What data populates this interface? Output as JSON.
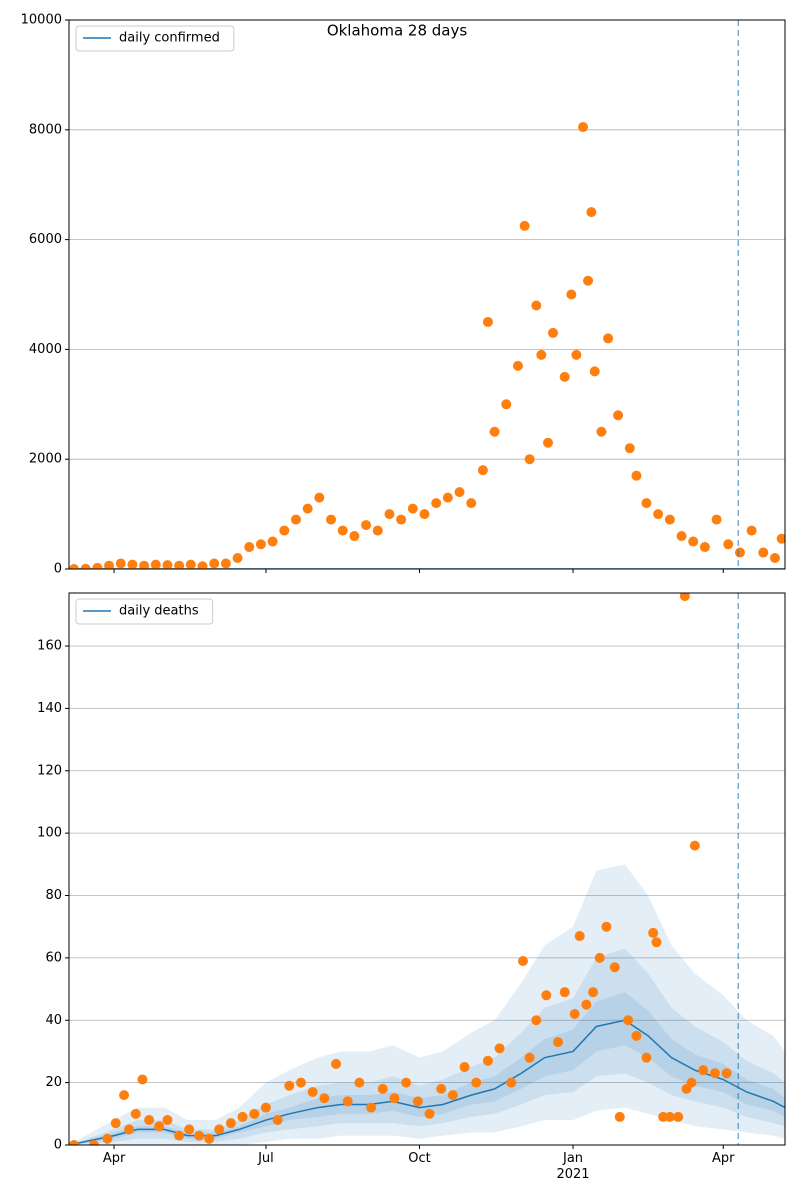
{
  "chart_data": [
    {
      "type": "line",
      "title": "Oklahoma 28 days",
      "ylim": [
        0,
        10000
      ],
      "yticks": [
        0,
        2000,
        4000,
        6000,
        8000,
        10000
      ],
      "grid": true,
      "legend": "upper left",
      "xlim": [
        "2020-03-05",
        "2021-05-08"
      ],
      "vline": "2021-04-10",
      "series": [
        {
          "name": "daily confirmed",
          "color": "#1f77b4",
          "x": [
            "2020-03-05",
            "2021-05-08"
          ],
          "values": [
            0,
            0
          ]
        }
      ],
      "scatter": {
        "color": "#ff7f0e",
        "x": [
          "2020-03-08",
          "2020-03-15",
          "2020-03-22",
          "2020-03-29",
          "2020-04-05",
          "2020-04-12",
          "2020-04-19",
          "2020-04-26",
          "2020-05-03",
          "2020-05-10",
          "2020-05-17",
          "2020-05-24",
          "2020-05-31",
          "2020-06-07",
          "2020-06-14",
          "2020-06-21",
          "2020-06-28",
          "2020-07-05",
          "2020-07-12",
          "2020-07-19",
          "2020-07-26",
          "2020-08-02",
          "2020-08-09",
          "2020-08-16",
          "2020-08-23",
          "2020-08-30",
          "2020-09-06",
          "2020-09-13",
          "2020-09-20",
          "2020-09-27",
          "2020-10-04",
          "2020-10-11",
          "2020-10-18",
          "2020-10-25",
          "2020-11-01",
          "2020-11-08",
          "2020-11-11",
          "2020-11-15",
          "2020-11-22",
          "2020-11-29",
          "2020-12-03",
          "2020-12-06",
          "2020-12-10",
          "2020-12-13",
          "2020-12-17",
          "2020-12-20",
          "2020-12-27",
          "2020-12-31",
          "2021-01-03",
          "2021-01-07",
          "2021-01-10",
          "2021-01-12",
          "2021-01-14",
          "2021-01-18",
          "2021-01-22",
          "2021-01-28",
          "2021-02-04",
          "2021-02-08",
          "2021-02-14",
          "2021-02-21",
          "2021-02-28",
          "2021-03-07",
          "2021-03-14",
          "2021-03-21",
          "2021-03-28",
          "2021-04-04",
          "2021-04-11",
          "2021-04-18",
          "2021-04-25",
          "2021-05-02",
          "2021-05-06"
        ],
        "values": [
          0,
          5,
          20,
          60,
          100,
          80,
          60,
          80,
          70,
          60,
          80,
          50,
          100,
          100,
          200,
          400,
          450,
          500,
          700,
          900,
          1100,
          1300,
          900,
          700,
          600,
          800,
          700,
          1000,
          900,
          1100,
          1000,
          1200,
          1300,
          1400,
          1200,
          1800,
          4500,
          2500,
          3000,
          3700,
          6250,
          2000,
          4800,
          3900,
          2300,
          4300,
          3500,
          5000,
          3900,
          8050,
          5250,
          6500,
          3600,
          2500,
          4200,
          2800,
          2200,
          1700,
          1200,
          1000,
          900,
          600,
          500,
          400,
          900,
          450,
          300,
          700,
          300,
          200,
          550
        ]
      }
    },
    {
      "type": "line",
      "ylim": [
        0,
        177
      ],
      "yticks": [
        0,
        20,
        40,
        60,
        80,
        100,
        120,
        140,
        160
      ],
      "grid": true,
      "legend": "upper left",
      "xlim": [
        "2020-03-05",
        "2021-05-08"
      ],
      "vline": "2021-04-10",
      "xticks": [
        {
          "value": "2020-04-01",
          "label": "Apr"
        },
        {
          "value": "2020-07-01",
          "label": "Jul"
        },
        {
          "value": "2020-10-01",
          "label": "Oct"
        },
        {
          "value": "2021-01-01",
          "label": "Jan\n2021"
        },
        {
          "value": "2021-04-01",
          "label": "Apr"
        }
      ],
      "series": [
        {
          "name": "daily deaths",
          "color": "#1f77b4",
          "x": [
            "2020-03-05",
            "2020-04-01",
            "2020-04-15",
            "2020-05-01",
            "2020-05-15",
            "2020-06-01",
            "2020-06-15",
            "2020-07-01",
            "2020-07-15",
            "2020-08-01",
            "2020-08-15",
            "2020-09-01",
            "2020-09-15",
            "2020-10-01",
            "2020-10-15",
            "2020-11-01",
            "2020-11-15",
            "2020-12-01",
            "2020-12-15",
            "2021-01-01",
            "2021-01-15",
            "2021-02-01",
            "2021-02-15",
            "2021-03-01",
            "2021-03-15",
            "2021-04-01",
            "2021-04-15",
            "2021-05-01",
            "2021-05-08"
          ],
          "values": [
            0,
            3,
            5,
            5,
            3,
            3,
            5,
            8,
            10,
            12,
            13,
            13,
            14,
            12,
            13,
            16,
            18,
            23,
            28,
            30,
            38,
            40,
            35,
            28,
            24,
            21,
            17,
            14,
            12
          ],
          "bands": [
            {
              "lower": [
                0,
                0,
                0,
                0,
                0,
                0,
                0,
                1,
                2,
                2,
                3,
                3,
                3,
                2,
                3,
                4,
                4,
                6,
                8,
                8,
                11,
                12,
                10,
                8,
                6,
                5,
                4,
                3,
                2
              ],
              "upper": [
                0,
                8,
                12,
                12,
                8,
                8,
                12,
                20,
                24,
                28,
                30,
                30,
                32,
                28,
                30,
                36,
                40,
                52,
                64,
                70,
                88,
                90,
                80,
                64,
                55,
                48,
                40,
                35,
                30
              ]
            },
            {
              "lower": [
                0,
                1,
                2,
                2,
                1,
                1,
                2,
                4,
                5,
                6,
                7,
                7,
                7,
                6,
                7,
                9,
                10,
                13,
                16,
                17,
                22,
                23,
                20,
                16,
                14,
                12,
                9,
                7,
                6
              ],
              "upper": [
                0,
                5,
                8,
                8,
                5,
                5,
                8,
                13,
                16,
                19,
                20,
                20,
                22,
                19,
                21,
                25,
                28,
                36,
                44,
                47,
                60,
                63,
                55,
                44,
                38,
                33,
                27,
                23,
                20
              ]
            },
            {
              "lower": [
                0,
                2,
                4,
                4,
                2,
                2,
                4,
                6,
                8,
                9,
                10,
                10,
                11,
                9,
                10,
                13,
                14,
                18,
                22,
                24,
                30,
                32,
                28,
                22,
                19,
                17,
                13,
                11,
                9
              ],
              "upper": [
                0,
                4,
                6,
                6,
                4,
                4,
                6,
                10,
                12,
                15,
                16,
                16,
                17,
                15,
                16,
                20,
                22,
                28,
                34,
                37,
                46,
                49,
                43,
                34,
                29,
                26,
                21,
                18,
                15
              ]
            }
          ]
        }
      ],
      "scatter": {
        "color": "#ff7f0e",
        "x": [
          "2020-03-08",
          "2020-03-20",
          "2020-03-28",
          "2020-04-02",
          "2020-04-07",
          "2020-04-10",
          "2020-04-14",
          "2020-04-18",
          "2020-04-22",
          "2020-04-28",
          "2020-05-03",
          "2020-05-10",
          "2020-05-16",
          "2020-05-22",
          "2020-05-28",
          "2020-06-03",
          "2020-06-10",
          "2020-06-17",
          "2020-06-24",
          "2020-07-01",
          "2020-07-08",
          "2020-07-15",
          "2020-07-22",
          "2020-07-29",
          "2020-08-05",
          "2020-08-12",
          "2020-08-19",
          "2020-08-26",
          "2020-09-02",
          "2020-09-09",
          "2020-09-16",
          "2020-09-23",
          "2020-09-30",
          "2020-10-07",
          "2020-10-14",
          "2020-10-21",
          "2020-10-28",
          "2020-11-04",
          "2020-11-11",
          "2020-11-18",
          "2020-11-25",
          "2020-12-02",
          "2020-12-06",
          "2020-12-10",
          "2020-12-16",
          "2020-12-23",
          "2020-12-27",
          "2021-01-02",
          "2021-01-05",
          "2021-01-09",
          "2021-01-13",
          "2021-01-17",
          "2021-01-21",
          "2021-01-26",
          "2021-01-29",
          "2021-02-03",
          "2021-02-08",
          "2021-02-14",
          "2021-02-18",
          "2021-02-20",
          "2021-02-24",
          "2021-02-28",
          "2021-03-05",
          "2021-03-09",
          "2021-03-10",
          "2021-03-13",
          "2021-03-15",
          "2021-03-20",
          "2021-03-27",
          "2021-04-03"
        ],
        "values": [
          0,
          0,
          2,
          7,
          16,
          5,
          10,
          21,
          8,
          6,
          8,
          3,
          5,
          3,
          2,
          5,
          7,
          9,
          10,
          12,
          8,
          19,
          20,
          17,
          15,
          26,
          14,
          20,
          12,
          18,
          15,
          20,
          14,
          10,
          18,
          16,
          25,
          20,
          27,
          31,
          20,
          59,
          28,
          40,
          48,
          33,
          49,
          42,
          67,
          45,
          49,
          60,
          70,
          57,
          9,
          40,
          35,
          28,
          68,
          65,
          9,
          9,
          9,
          176,
          18,
          20,
          96,
          24,
          23,
          23
        ]
      }
    }
  ]
}
